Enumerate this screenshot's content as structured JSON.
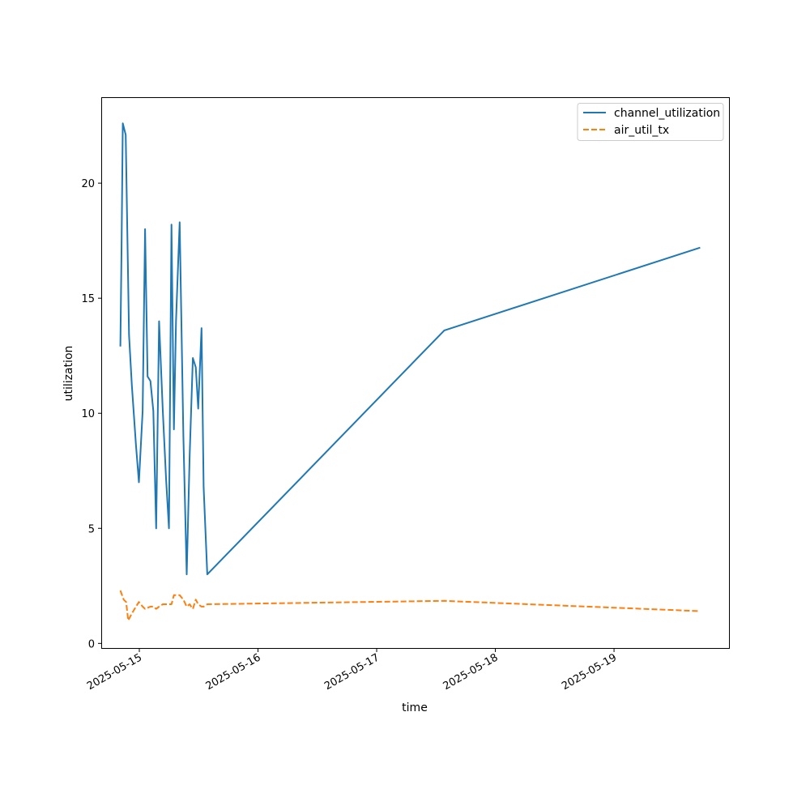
{
  "chart_data": {
    "type": "line",
    "xlabel": "time",
    "ylabel": "utilization",
    "x_ticks": [
      "2025-05-15",
      "2025-05-16",
      "2025-05-17",
      "2025-05-18",
      "2025-05-19"
    ],
    "y_ticks": [
      "0",
      "5",
      "10",
      "15",
      "20"
    ],
    "xlim": [
      "2025-05-14 16:28",
      "2025-05-19 23:15"
    ],
    "ylim": [
      -0.2,
      23.7
    ],
    "grid": false,
    "legend_position": "top-right",
    "series": [
      {
        "name": "channel_utilization",
        "color": "#1f77b4",
        "dash": "solid",
        "points": [
          {
            "t": "2025-05-14 20:10",
            "v": 12.9
          },
          {
            "t": "2025-05-14 20:25",
            "v": 17.3
          },
          {
            "t": "2025-05-14 20:40",
            "v": 22.6
          },
          {
            "t": "2025-05-14 21:15",
            "v": 22.1
          },
          {
            "t": "2025-05-14 21:55",
            "v": 13.4
          },
          {
            "t": "2025-05-14 22:30",
            "v": 11.2
          },
          {
            "t": "2025-05-14 23:20",
            "v": 8.6
          },
          {
            "t": "2025-05-14 23:55",
            "v": 7.0
          },
          {
            "t": "2025-05-15 00:40",
            "v": 10.1
          },
          {
            "t": "2025-05-15 01:10",
            "v": 18.0
          },
          {
            "t": "2025-05-15 01:40",
            "v": 11.6
          },
          {
            "t": "2025-05-15 02:15",
            "v": 11.4
          },
          {
            "t": "2025-05-15 02:50",
            "v": 10.1
          },
          {
            "t": "2025-05-15 03:25",
            "v": 5.0
          },
          {
            "t": "2025-05-15 04:00",
            "v": 14.0
          },
          {
            "t": "2025-05-15 04:45",
            "v": 10.1
          },
          {
            "t": "2025-05-15 05:25",
            "v": 7.1
          },
          {
            "t": "2025-05-15 06:00",
            "v": 5.0
          },
          {
            "t": "2025-05-15 06:30",
            "v": 18.2
          },
          {
            "t": "2025-05-15 07:00",
            "v": 9.3
          },
          {
            "t": "2025-05-15 07:25",
            "v": 14.0
          },
          {
            "t": "2025-05-15 08:10",
            "v": 18.3
          },
          {
            "t": "2025-05-15 08:55",
            "v": 9.0
          },
          {
            "t": "2025-05-15 09:35",
            "v": 3.0
          },
          {
            "t": "2025-05-15 10:10",
            "v": 8.1
          },
          {
            "t": "2025-05-15 10:50",
            "v": 12.4
          },
          {
            "t": "2025-05-15 11:25",
            "v": 12.0
          },
          {
            "t": "2025-05-15 11:55",
            "v": 10.2
          },
          {
            "t": "2025-05-15 12:35",
            "v": 13.7
          },
          {
            "t": "2025-05-15 13:00",
            "v": 6.8
          },
          {
            "t": "2025-05-15 13:45",
            "v": 3.0
          },
          {
            "t": "2025-05-17 13:40",
            "v": 13.6
          },
          {
            "t": "2025-05-19 17:25",
            "v": 17.2
          }
        ]
      },
      {
        "name": "air_util_tx",
        "color": "#ff7f0e",
        "dash": "dashed",
        "points": [
          {
            "t": "2025-05-14 20:10",
            "v": 2.3
          },
          {
            "t": "2025-05-14 20:50",
            "v": 1.9
          },
          {
            "t": "2025-05-14 21:20",
            "v": 1.8
          },
          {
            "t": "2025-05-14 21:45",
            "v": 1.0
          },
          {
            "t": "2025-05-14 22:30",
            "v": 1.3
          },
          {
            "t": "2025-05-14 23:20",
            "v": 1.6
          },
          {
            "t": "2025-05-14 23:55",
            "v": 1.8
          },
          {
            "t": "2025-05-15 00:40",
            "v": 1.6
          },
          {
            "t": "2025-05-15 01:10",
            "v": 1.5
          },
          {
            "t": "2025-05-15 02:15",
            "v": 1.6
          },
          {
            "t": "2025-05-15 02:50",
            "v": 1.6
          },
          {
            "t": "2025-05-15 03:25",
            "v": 1.5
          },
          {
            "t": "2025-05-15 04:00",
            "v": 1.6
          },
          {
            "t": "2025-05-15 04:45",
            "v": 1.7
          },
          {
            "t": "2025-05-15 06:00",
            "v": 1.7
          },
          {
            "t": "2025-05-15 06:30",
            "v": 1.7
          },
          {
            "t": "2025-05-15 07:00",
            "v": 2.1
          },
          {
            "t": "2025-05-15 08:10",
            "v": 2.1
          },
          {
            "t": "2025-05-15 08:55",
            "v": 1.9
          },
          {
            "t": "2025-05-15 09:35",
            "v": 1.6
          },
          {
            "t": "2025-05-15 10:10",
            "v": 1.7
          },
          {
            "t": "2025-05-15 10:50",
            "v": 1.5
          },
          {
            "t": "2025-05-15 11:25",
            "v": 1.9
          },
          {
            "t": "2025-05-15 11:55",
            "v": 1.7
          },
          {
            "t": "2025-05-15 12:35",
            "v": 1.6
          },
          {
            "t": "2025-05-15 13:00",
            "v": 1.6
          },
          {
            "t": "2025-05-15 13:45",
            "v": 1.7
          },
          {
            "t": "2025-05-17 13:40",
            "v": 1.85
          },
          {
            "t": "2025-05-19 17:25",
            "v": 1.4
          }
        ]
      }
    ]
  }
}
